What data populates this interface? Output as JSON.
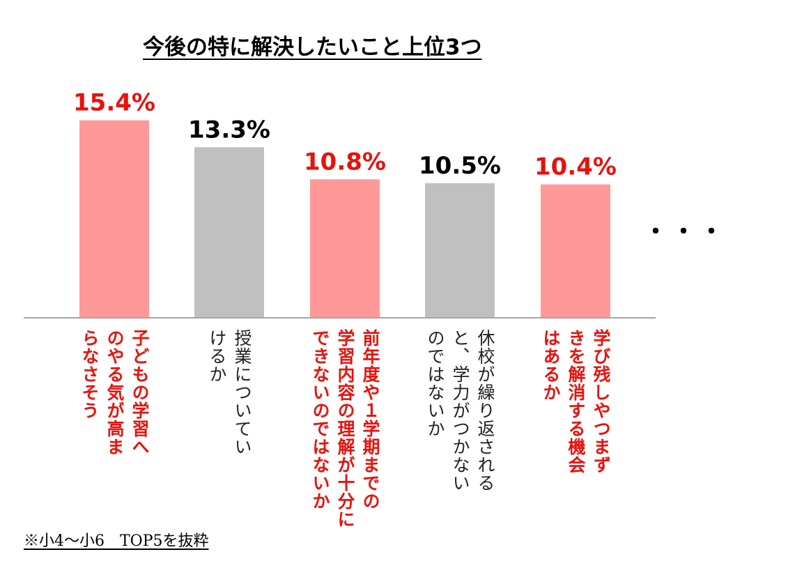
{
  "chart_data": {
    "type": "bar",
    "title": "今後の特に解決したいこと上位3つ",
    "categories": [
      "子どもの学習へのやる気が高まらなそう",
      "授業についていけるか",
      "前年度や１学期までの学習内容の理解が十分にできないのではないか",
      "休校が繰り返されると、学力がつかないのではないか",
      "学び残しやつまずきを解消する機会はあるか"
    ],
    "category_lines": [
      "子どもの学習へ\nのやる気が高ま\nらなさそう",
      "授業についてい\nけるか",
      "前年度や１学期までの\n学習内容の理解が十分に\nできないのではないか",
      "休校が繰り返される\nと、学力がつかない\nのではないか",
      "学び残しやつまず\nきを解消する機会\nはあるか"
    ],
    "values": [
      15.4,
      13.3,
      10.8,
      10.5,
      10.4
    ],
    "data_labels": [
      "15.4%",
      "13.3%",
      "10.8%",
      "10.5%",
      "10.4%"
    ],
    "highlighted": [
      true,
      false,
      true,
      false,
      true
    ],
    "ylim": [
      0,
      18
    ],
    "xlabel": "",
    "ylabel": "",
    "grid": false,
    "legend": "none"
  },
  "colors": {
    "highlight_bar": "#ff9999",
    "normal_bar": "#c0c0c0",
    "highlight_text": "#e8120c",
    "normal_text": "#000000",
    "axis": "#a6a6a6"
  },
  "ellipsis": "・・・",
  "footnote": "※小4〜小6　TOP5を抜粋"
}
